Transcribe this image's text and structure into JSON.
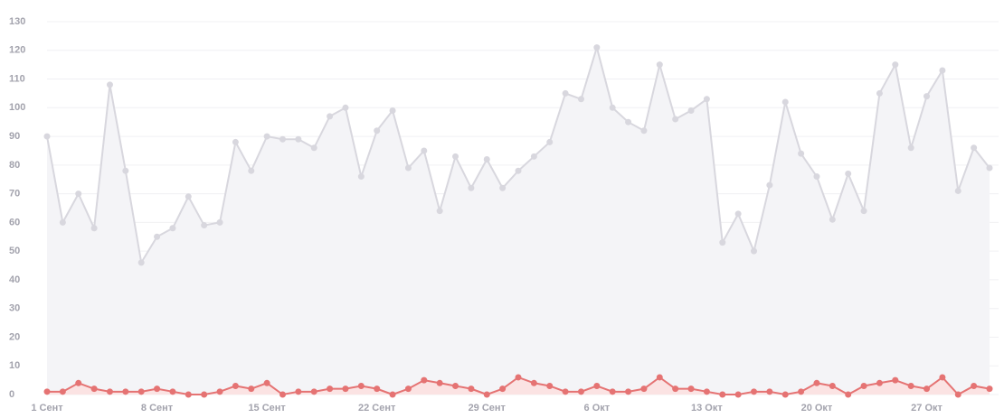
{
  "chart_data": {
    "type": "line",
    "categories": [
      "1 Сент",
      null,
      null,
      null,
      null,
      null,
      null,
      "8 Сент",
      null,
      null,
      null,
      null,
      null,
      null,
      "15 Сент",
      null,
      null,
      null,
      null,
      null,
      null,
      "22 Сент",
      null,
      null,
      null,
      null,
      null,
      null,
      "29 Сент",
      null,
      null,
      null,
      null,
      null,
      null,
      "6 Окт",
      null,
      null,
      null,
      null,
      null,
      null,
      "13 Окт",
      null,
      null,
      null,
      null,
      null,
      null,
      "20 Окт",
      null,
      null,
      null,
      null,
      null,
      null,
      "27 Окт",
      null,
      null,
      null,
      null
    ],
    "series": [
      {
        "color": "#d8d7de",
        "fill": "#f4f4f7",
        "values": [
          90,
          60,
          70,
          58,
          108,
          78,
          46,
          55,
          58,
          69,
          59,
          60,
          88,
          78,
          90,
          89,
          89,
          86,
          97,
          100,
          76,
          92,
          99,
          79,
          85,
          64,
          83,
          72,
          82,
          72,
          78,
          83,
          88,
          105,
          103,
          121,
          100,
          95,
          92,
          115,
          96,
          99,
          103,
          53,
          63,
          50,
          73,
          102,
          84,
          76,
          61,
          77,
          64,
          105,
          115,
          86,
          104,
          113,
          71,
          86,
          79
        ]
      },
      {
        "color": "#e57373",
        "fill": "#fbe3e3",
        "values": [
          1,
          1,
          4,
          2,
          1,
          1,
          1,
          2,
          1,
          0,
          0,
          1,
          3,
          2,
          4,
          0,
          1,
          1,
          2,
          2,
          3,
          2,
          0,
          2,
          5,
          4,
          3,
          2,
          0,
          2,
          6,
          4,
          3,
          1,
          1,
          3,
          1,
          1,
          2,
          6,
          2,
          2,
          1,
          0,
          0,
          1,
          1,
          0,
          1,
          4,
          3,
          0,
          3,
          4,
          5,
          3,
          2,
          6,
          0,
          3,
          2
        ]
      }
    ],
    "ylim": [
      0,
      130
    ],
    "yticks": [
      0,
      10,
      20,
      30,
      40,
      50,
      60,
      70,
      80,
      90,
      100,
      110,
      120,
      130
    ],
    "grid": true
  }
}
